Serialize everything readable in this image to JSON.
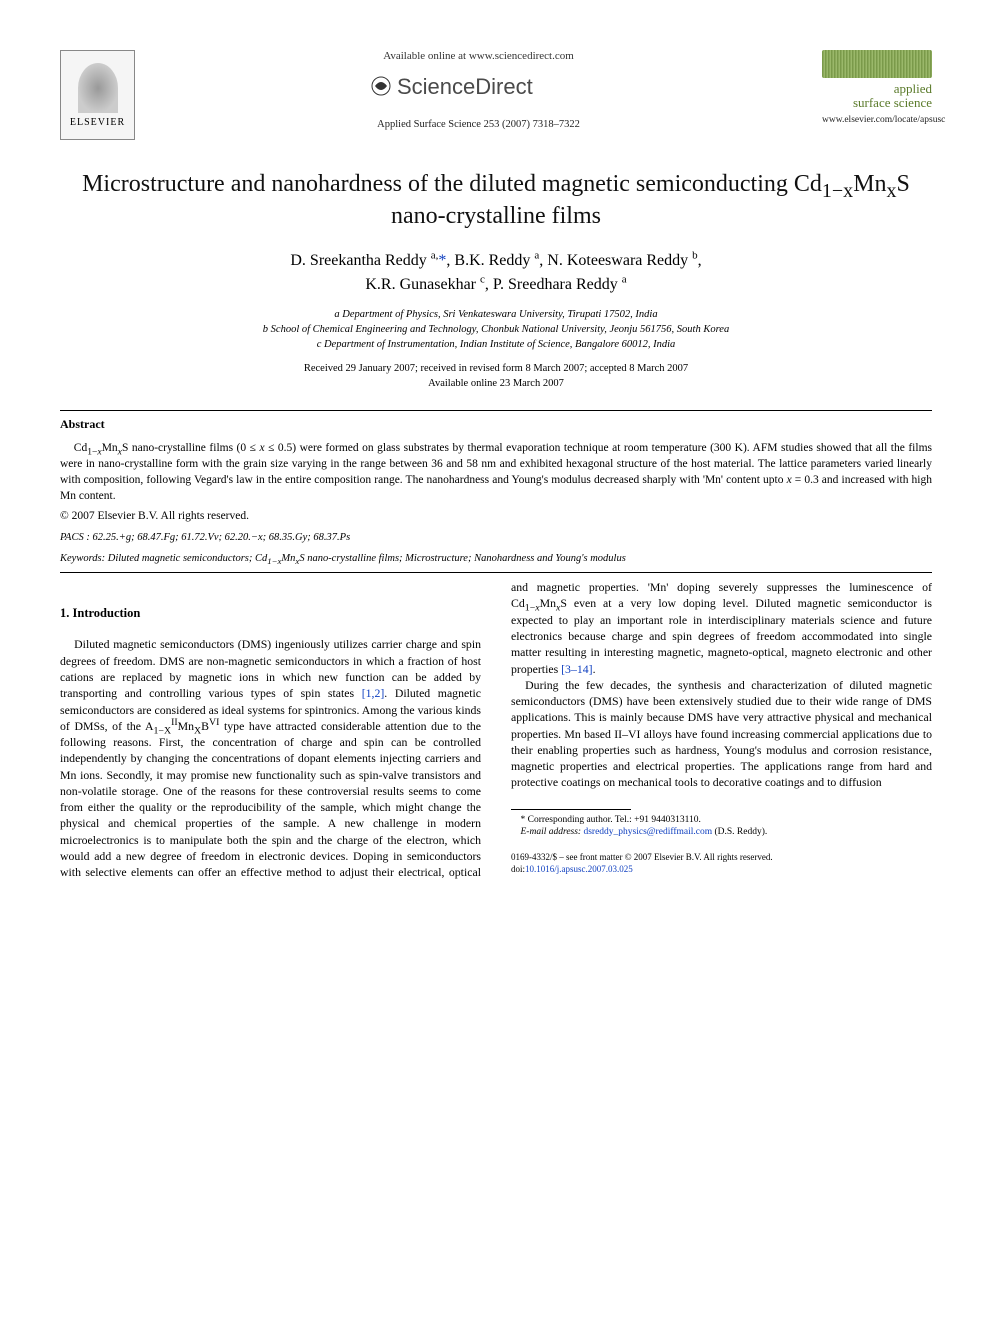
{
  "header": {
    "available_online": "Available online at www.sciencedirect.com",
    "sciencedirect_label": "ScienceDirect",
    "citation": "Applied Surface Science 253 (2007) 7318–7322",
    "journal_name_line1": "applied",
    "journal_name_line2": "surface science",
    "journal_url": "www.elsevier.com/locate/apsusc",
    "elsevier": "ELSEVIER"
  },
  "title_parts": {
    "pre": "Microstructure and nanohardness of the diluted magnetic semiconducting Cd",
    "sub1": "1−x",
    "mid1": "Mn",
    "sub2": "x",
    "post": "S nano-crystalline films"
  },
  "authors_html": "D. Sreekantha Reddy <sup>a,</sup><a href=\"#\">*</a>, B.K. Reddy <sup>a</sup>, N. Koteeswara Reddy <sup>b</sup>,<br>K.R. Gunasekhar <sup>c</sup>, P. Sreedhara Reddy <sup>a</sup>",
  "affiliations": [
    "a Department of Physics, Sri Venkateswara University, Tirupati 17502, India",
    "b School of Chemical Engineering and Technology, Chonbuk National University, Jeonju 561756, South Korea",
    "c Department of Instrumentation, Indian Institute of Science, Bangalore 60012, India"
  ],
  "dates": {
    "received": "Received 29 January 2007; received in revised form 8 March 2007; accepted 8 March 2007",
    "online": "Available online 23 March 2007"
  },
  "abstract": {
    "heading": "Abstract",
    "body_html": "Cd<sub>1−<i>x</i></sub>Mn<sub><i>x</i></sub>S nano-crystalline films (0 ≤ <i>x</i> ≤ 0.5) were formed on glass substrates by thermal evaporation technique at room temperature (300 K). AFM studies showed that all the films were in nano-crystalline form with the grain size varying in the range between 36 and 58 nm and exhibited hexagonal structure of the host material. The lattice parameters varied linearly with composition, following Vegard's law in the entire composition range. The nanohardness and Young's modulus decreased sharply with 'Mn' content upto <i>x</i> = 0.3 and increased with high Mn content.",
    "copyright": "© 2007 Elsevier B.V. All rights reserved."
  },
  "pacs": {
    "label": "PACS :",
    "codes": "62.25.+g; 68.47.Fg; 61.72.Vv; 62.20.−x; 68.35.Gy; 68.37.Ps"
  },
  "keywords": {
    "label": "Keywords:",
    "text_html": "Diluted magnetic semiconductors; Cd<sub>1−<i>x</i></sub>Mn<sub><i>x</i></sub>S nano-crystalline films; Microstructure; Nanohardness and Young's modulus"
  },
  "section1": {
    "heading": "1.  Introduction",
    "para1_html": "Diluted magnetic semiconductors (DMS) ingeniously utilizes carrier charge and spin degrees of freedom. DMS are non-magnetic semiconductors in which a fraction of host cations are replaced by magnetic ions in which new function can be added by transporting and controlling various types of spin states <a href=\"#\">[1,2]</a>. Diluted magnetic semiconductors are considered as ideal systems for spintronics. Among the various kinds of DMSs, of the A<sub>1−X</sub><sup>II</sup>Mn<sub>X</sub>B<sup>VI</sup> type have attracted considerable attention due to the following reasons. First, the concentration of charge and spin can be controlled independently by changing the concentrations of dopant elements injecting carriers and Mn ions. Secondly, it may promise new functionality such as spin-valve transistors and non-volatile storage. One of the reasons for these controversial results seems to come from either the quality or the reproducibility of the sample, which might change the physical and chemical properties of the sample. A new challenge in modern microelectronics is to manipulate both the spin and the charge of the electron, which would add a new degree of freedom in electronic devices. Doping in semiconductors with selective elements can offer an effective method to adjust their electrical, optical and magnetic properties. 'Mn' doping severely suppresses the luminescence of Cd<sub>1−<i>x</i></sub>Mn<sub><i>x</i></sub>S even at a very low doping level. Diluted magnetic semiconductor is expected to play an important role in interdisciplinary materials science and future electronics because charge and spin degrees of freedom accommodated into single matter resulting in interesting magnetic, magneto-optical, magneto electronic and other properties <a href=\"#\">[3–14]</a>.",
    "para2_html": "During the few decades, the synthesis and characterization of diluted magnetic semiconductors (DMS) have been extensively studied due to their wide range of DMS applications. This is mainly because DMS have very attractive physical and mechanical properties. Mn based II–VI alloys have found increasing commercial applications due to their enabling properties such as hardness, Young's modulus and corrosion resistance, magnetic properties and electrical properties. The applications range from hard and protective coatings on mechanical tools to decorative coatings and to diffusion"
  },
  "footnote": {
    "corr": "* Corresponding author. Tel.: +91 9440313110.",
    "email_label": "E-mail address:",
    "email": "dsreddy_physics@rediffmail.com",
    "email_who": "(D.S. Reddy)."
  },
  "front_matter": {
    "line1": "0169-4332/$ – see front matter © 2007 Elsevier B.V. All rights reserved.",
    "doi_label": "doi:",
    "doi": "10.1016/j.apsusc.2007.03.025"
  },
  "colors": {
    "link": "#1040c0",
    "text": "#000000",
    "journal_green": "#5a7a2a"
  }
}
